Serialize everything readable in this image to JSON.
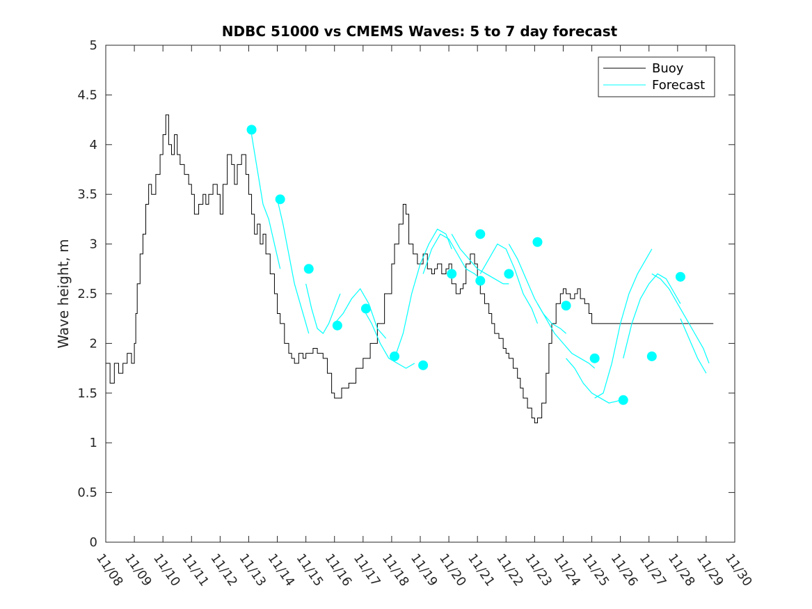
{
  "chart_data": {
    "type": "line",
    "title": "NDBC 51000 vs CMEMS Waves: 5 to 7 day forecast",
    "xlabel": "",
    "ylabel": "Wave height, m",
    "xlim": [
      0,
      22
    ],
    "ylim": [
      0,
      5
    ],
    "x_tick_labels": [
      "11/08",
      "11/09",
      "11/10",
      "11/11",
      "11/12",
      "11/13",
      "11/14",
      "11/15",
      "11/16",
      "11/17",
      "11/18",
      "11/19",
      "11/20",
      "11/21",
      "11/22",
      "11/23",
      "11/24",
      "11/25",
      "11/26",
      "11/27",
      "11/28",
      "11/29",
      "11/30"
    ],
    "y_ticks": [
      0,
      0.5,
      1,
      1.5,
      2,
      2.5,
      3,
      3.5,
      4,
      4.5,
      5
    ],
    "grid": false,
    "legend_position": "top-right",
    "colors": {
      "buoy": "#000000",
      "forecast": "#00ffff",
      "axis": "#262626"
    },
    "series": [
      {
        "name": "Buoy",
        "x": [
          0,
          0.15,
          0.3,
          0.45,
          0.6,
          0.75,
          0.9,
          1.0,
          1.05,
          1.1,
          1.2,
          1.3,
          1.4,
          1.5,
          1.6,
          1.75,
          1.9,
          2.0,
          2.1,
          2.2,
          2.3,
          2.4,
          2.5,
          2.6,
          2.75,
          2.9,
          3.0,
          3.1,
          3.25,
          3.4,
          3.5,
          3.6,
          3.75,
          3.9,
          4.0,
          4.1,
          4.25,
          4.4,
          4.5,
          4.6,
          4.75,
          4.9,
          5.0,
          5.1,
          5.2,
          5.3,
          5.4,
          5.5,
          5.6,
          5.75,
          5.9,
          6.0,
          6.1,
          6.25,
          6.4,
          6.5,
          6.6,
          6.75,
          6.9,
          7.0,
          7.1,
          7.25,
          7.4,
          7.5,
          7.6,
          7.75,
          7.9,
          8.0,
          8.25,
          8.5,
          8.75,
          9.0,
          9.25,
          9.5,
          9.75,
          10.0,
          10.1,
          10.25,
          10.4,
          10.5,
          10.6,
          10.75,
          10.9,
          11.0,
          11.1,
          11.25,
          11.4,
          11.5,
          11.6,
          11.75,
          11.9,
          12.0,
          12.1,
          12.25,
          12.4,
          12.5,
          12.6,
          12.75,
          12.9,
          13.0,
          13.1,
          13.25,
          13.4,
          13.5,
          13.6,
          13.75,
          13.9,
          14.0,
          14.1,
          14.25,
          14.4,
          14.5,
          14.6,
          14.75,
          14.9,
          15.0,
          15.1,
          15.25,
          15.4,
          15.5,
          15.6,
          15.75,
          15.9,
          16.0,
          16.1,
          16.25,
          16.4,
          16.5,
          16.6,
          16.75,
          16.9,
          17.0,
          17.1,
          17.25,
          17.4,
          17.5,
          17.6,
          17.75,
          17.9,
          18.0,
          18.1,
          18.25,
          18.4,
          18.5,
          18.6,
          18.75,
          18.9,
          19.0,
          19.1,
          19.25,
          19.4,
          19.5,
          19.6,
          19.75,
          19.9,
          20.0,
          20.1,
          20.25,
          20.4,
          20.5,
          20.6,
          20.75,
          20.9,
          21.0,
          21.1,
          21.25
        ],
        "y": [
          1.8,
          1.6,
          1.8,
          1.7,
          1.8,
          1.9,
          1.8,
          2.0,
          2.3,
          2.6,
          2.9,
          3.1,
          3.4,
          3.6,
          3.5,
          3.7,
          3.9,
          4.1,
          4.3,
          4.0,
          3.9,
          4.1,
          3.9,
          3.8,
          3.7,
          3.6,
          3.5,
          3.3,
          3.4,
          3.5,
          3.4,
          3.5,
          3.6,
          3.5,
          3.3,
          3.6,
          3.9,
          3.8,
          3.6,
          3.8,
          3.9,
          3.7,
          3.5,
          3.3,
          3.1,
          3.2,
          3.0,
          3.1,
          2.9,
          2.7,
          2.5,
          2.3,
          2.2,
          2.0,
          1.9,
          1.85,
          1.8,
          1.9,
          1.85,
          1.9,
          1.9,
          1.95,
          1.9,
          1.9,
          1.85,
          1.7,
          1.5,
          1.45,
          1.55,
          1.6,
          1.75,
          1.85,
          2.0,
          2.2,
          2.5,
          2.8,
          3.0,
          3.2,
          3.4,
          3.3,
          3.0,
          2.9,
          2.8,
          2.8,
          2.9,
          2.75,
          2.7,
          2.75,
          2.8,
          2.7,
          2.75,
          2.8,
          2.6,
          2.5,
          2.55,
          2.6,
          2.8,
          2.9,
          2.8,
          2.6,
          2.5,
          2.4,
          2.3,
          2.2,
          2.1,
          2.05,
          1.95,
          1.9,
          1.85,
          1.75,
          1.65,
          1.55,
          1.45,
          1.35,
          1.25,
          1.2,
          1.25,
          1.4,
          1.7,
          2.0,
          2.2,
          2.4,
          2.5,
          2.55,
          2.5,
          2.45,
          2.5,
          2.55,
          2.45,
          2.4,
          2.3,
          2.2,
          2.2,
          2.2,
          2.2,
          2.2,
          2.2,
          2.2,
          2.2,
          2.2,
          2.2,
          2.2,
          2.2,
          2.2,
          2.2,
          2.2,
          2.2,
          2.2,
          2.2,
          2.2,
          2.2,
          2.2,
          2.2,
          2.2,
          2.2,
          2.2,
          2.2,
          2.2,
          2.2,
          2.2,
          2.2,
          2.2,
          2.2,
          2.2,
          2.2,
          2.2
        ]
      },
      {
        "name": "Forecast",
        "segments": [
          {
            "x": [
              5.1,
              5.3,
              5.5,
              5.7,
              5.9,
              6.1
            ],
            "y": [
              4.1,
              3.75,
              3.4,
              3.25,
              3.0,
              2.75
            ]
          },
          {
            "x": [
              6.0,
              6.2,
              6.4,
              6.6,
              6.8,
              7.0,
              7.1
            ],
            "y": [
              3.45,
              3.2,
              2.9,
              2.6,
              2.4,
              2.2,
              2.1
            ]
          },
          {
            "x": [
              7.0,
              7.2,
              7.4,
              7.6,
              7.8,
              8.0,
              8.2
            ],
            "y": [
              2.6,
              2.35,
              2.15,
              2.1,
              2.2,
              2.35,
              2.5
            ]
          },
          {
            "x": [
              8.0,
              8.3,
              8.6,
              8.9,
              9.2,
              9.5,
              9.8
            ],
            "y": [
              2.2,
              2.3,
              2.45,
              2.55,
              2.4,
              2.15,
              2.05
            ]
          },
          {
            "x": [
              9.0,
              9.3,
              9.6,
              9.9,
              10.2,
              10.5,
              10.8
            ],
            "y": [
              2.35,
              2.2,
              2.0,
              1.85,
              1.8,
              1.75,
              1.8
            ]
          },
          {
            "x": [
              10.1,
              10.4,
              10.7,
              11.0,
              11.3,
              11.6,
              11.9,
              12.1
            ],
            "y": [
              1.85,
              2.1,
              2.5,
              2.8,
              3.0,
              3.15,
              3.1,
              2.95
            ]
          },
          {
            "x": [
              11.1,
              11.4,
              11.7,
              12.0,
              12.3,
              12.6,
              12.9,
              13.1
            ],
            "y": [
              2.7,
              2.95,
              3.1,
              3.05,
              2.9,
              2.75,
              2.7,
              2.65
            ]
          },
          {
            "x": [
              12.1,
              12.4,
              12.7,
              13.0,
              13.3,
              13.6,
              13.9,
              14.1
            ],
            "y": [
              3.1,
              2.95,
              2.85,
              2.75,
              2.7,
              2.65,
              2.6,
              2.6
            ]
          },
          {
            "x": [
              13.1,
              13.4,
              13.7,
              14.0,
              14.3,
              14.6,
              14.9,
              15.1
            ],
            "y": [
              2.7,
              2.85,
              3.0,
              2.95,
              2.75,
              2.5,
              2.35,
              2.2
            ]
          },
          {
            "x": [
              14.1,
              14.4,
              14.7,
              15.0,
              15.3,
              15.6,
              15.9,
              16.1
            ],
            "y": [
              3.0,
              2.85,
              2.65,
              2.45,
              2.3,
              2.2,
              2.15,
              2.1
            ]
          },
          {
            "x": [
              15.1,
              15.4,
              15.7,
              16.0,
              16.3,
              16.6,
              16.9,
              17.1
            ],
            "y": [
              2.4,
              2.25,
              2.1,
              2.0,
              1.9,
              1.85,
              1.8,
              1.75
            ]
          },
          {
            "x": [
              16.1,
              16.4,
              16.7,
              17.0,
              17.3,
              17.6,
              17.9,
              18.1
            ],
            "y": [
              1.85,
              1.75,
              1.6,
              1.5,
              1.45,
              1.4,
              1.42,
              1.45
            ]
          },
          {
            "x": [
              17.1,
              17.4,
              17.7,
              18.0,
              18.3,
              18.6,
              18.9,
              19.1
            ],
            "y": [
              1.45,
              1.5,
              1.8,
              2.2,
              2.5,
              2.7,
              2.85,
              2.95
            ]
          },
          {
            "x": [
              18.1,
              18.4,
              18.7,
              19.0,
              19.3,
              19.6,
              19.9,
              20.1
            ],
            "y": [
              1.85,
              2.2,
              2.45,
              2.6,
              2.7,
              2.65,
              2.5,
              2.4
            ]
          },
          {
            "x": [
              19.1,
              19.4,
              19.7,
              20.0,
              20.3,
              20.6,
              20.9,
              21.1
            ],
            "y": [
              2.7,
              2.65,
              2.55,
              2.4,
              2.25,
              2.1,
              1.95,
              1.8
            ]
          },
          {
            "x": [
              20.1,
              20.4,
              20.7,
              21.0
            ],
            "y": [
              2.25,
              2.05,
              1.85,
              1.7
            ]
          }
        ],
        "markers": {
          "x": [
            5.1,
            6.1,
            7.1,
            8.1,
            9.1,
            10.1,
            11.1,
            12.1,
            13.1,
            13.1,
            14.1,
            15.1,
            16.1,
            17.1,
            18.1,
            19.1,
            20.1
          ],
          "y": [
            4.15,
            3.45,
            2.75,
            2.18,
            2.35,
            1.87,
            1.78,
            2.7,
            3.1,
            2.63,
            2.7,
            3.02,
            2.38,
            1.85,
            1.43,
            1.87,
            2.67
          ]
        }
      }
    ]
  }
}
